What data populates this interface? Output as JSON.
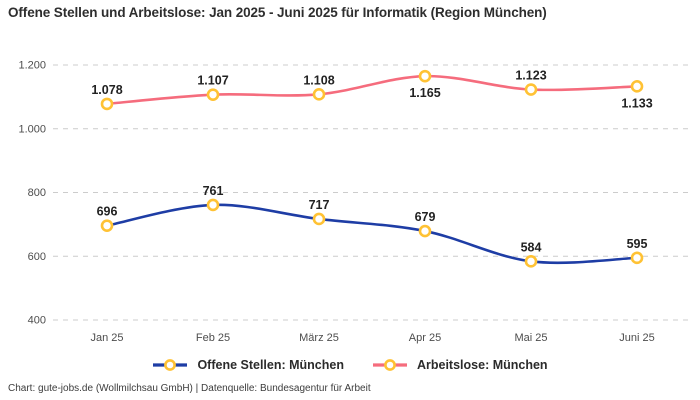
{
  "title": "Offene Stellen und Arbeitslose: Jan 2025 - Juni 2025 für Informatik (Region München)",
  "footer": "Chart: gute-jobs.de (Wollmilchsau GmbH) | Datenquelle: Bundesagentur für Arbeit",
  "colors": {
    "background": "#ffffff",
    "title_text": "#2e2e2e",
    "grid_line": "#cccccc",
    "tick_text": "#4d4d4d",
    "data_label_text": "#222222",
    "marker_fill": "#ffffff",
    "marker_stroke": "#ffc234",
    "series_blue": "#1e3da5",
    "series_pink": "#f56c7d",
    "footer_text": "#3c3c3c"
  },
  "chart_data": {
    "type": "line",
    "title": "Offene Stellen und Arbeitslose: Jan 2025 - Juni 2025 für Informatik (Region München)",
    "categories": [
      "Jan 25",
      "Feb 25",
      "März 25",
      "Apr 25",
      "Mai 25",
      "Juni 25"
    ],
    "series": [
      {
        "name": "Offene Stellen: München",
        "color": "#1e3da5",
        "values": [
          696,
          761,
          717,
          679,
          584,
          595
        ],
        "data_labels": [
          "696",
          "761",
          "717",
          "679",
          "584",
          "595"
        ],
        "label_positions": [
          "above",
          "above",
          "above",
          "above",
          "above",
          "above"
        ]
      },
      {
        "name": "Arbeitslose: München",
        "color": "#f56c7d",
        "values": [
          1078,
          1107,
          1108,
          1165,
          1123,
          1133
        ],
        "data_labels": [
          "1.078",
          "1.107",
          "1.108",
          "1.165",
          "1.123",
          "1.133"
        ],
        "label_positions": [
          "above",
          "above",
          "above",
          "below",
          "above",
          "below"
        ]
      }
    ],
    "xlabel": "",
    "ylabel": "",
    "ylim": [
      400,
      1200
    ],
    "yticks": [
      400,
      600,
      800,
      1000,
      1200
    ],
    "ytick_labels": [
      "400",
      "600",
      "800",
      "1.000",
      "1.200"
    ],
    "grid": "horizontal-dashed",
    "legend_position": "bottom",
    "marker_style": "circle-white-fill-amber-stroke"
  }
}
